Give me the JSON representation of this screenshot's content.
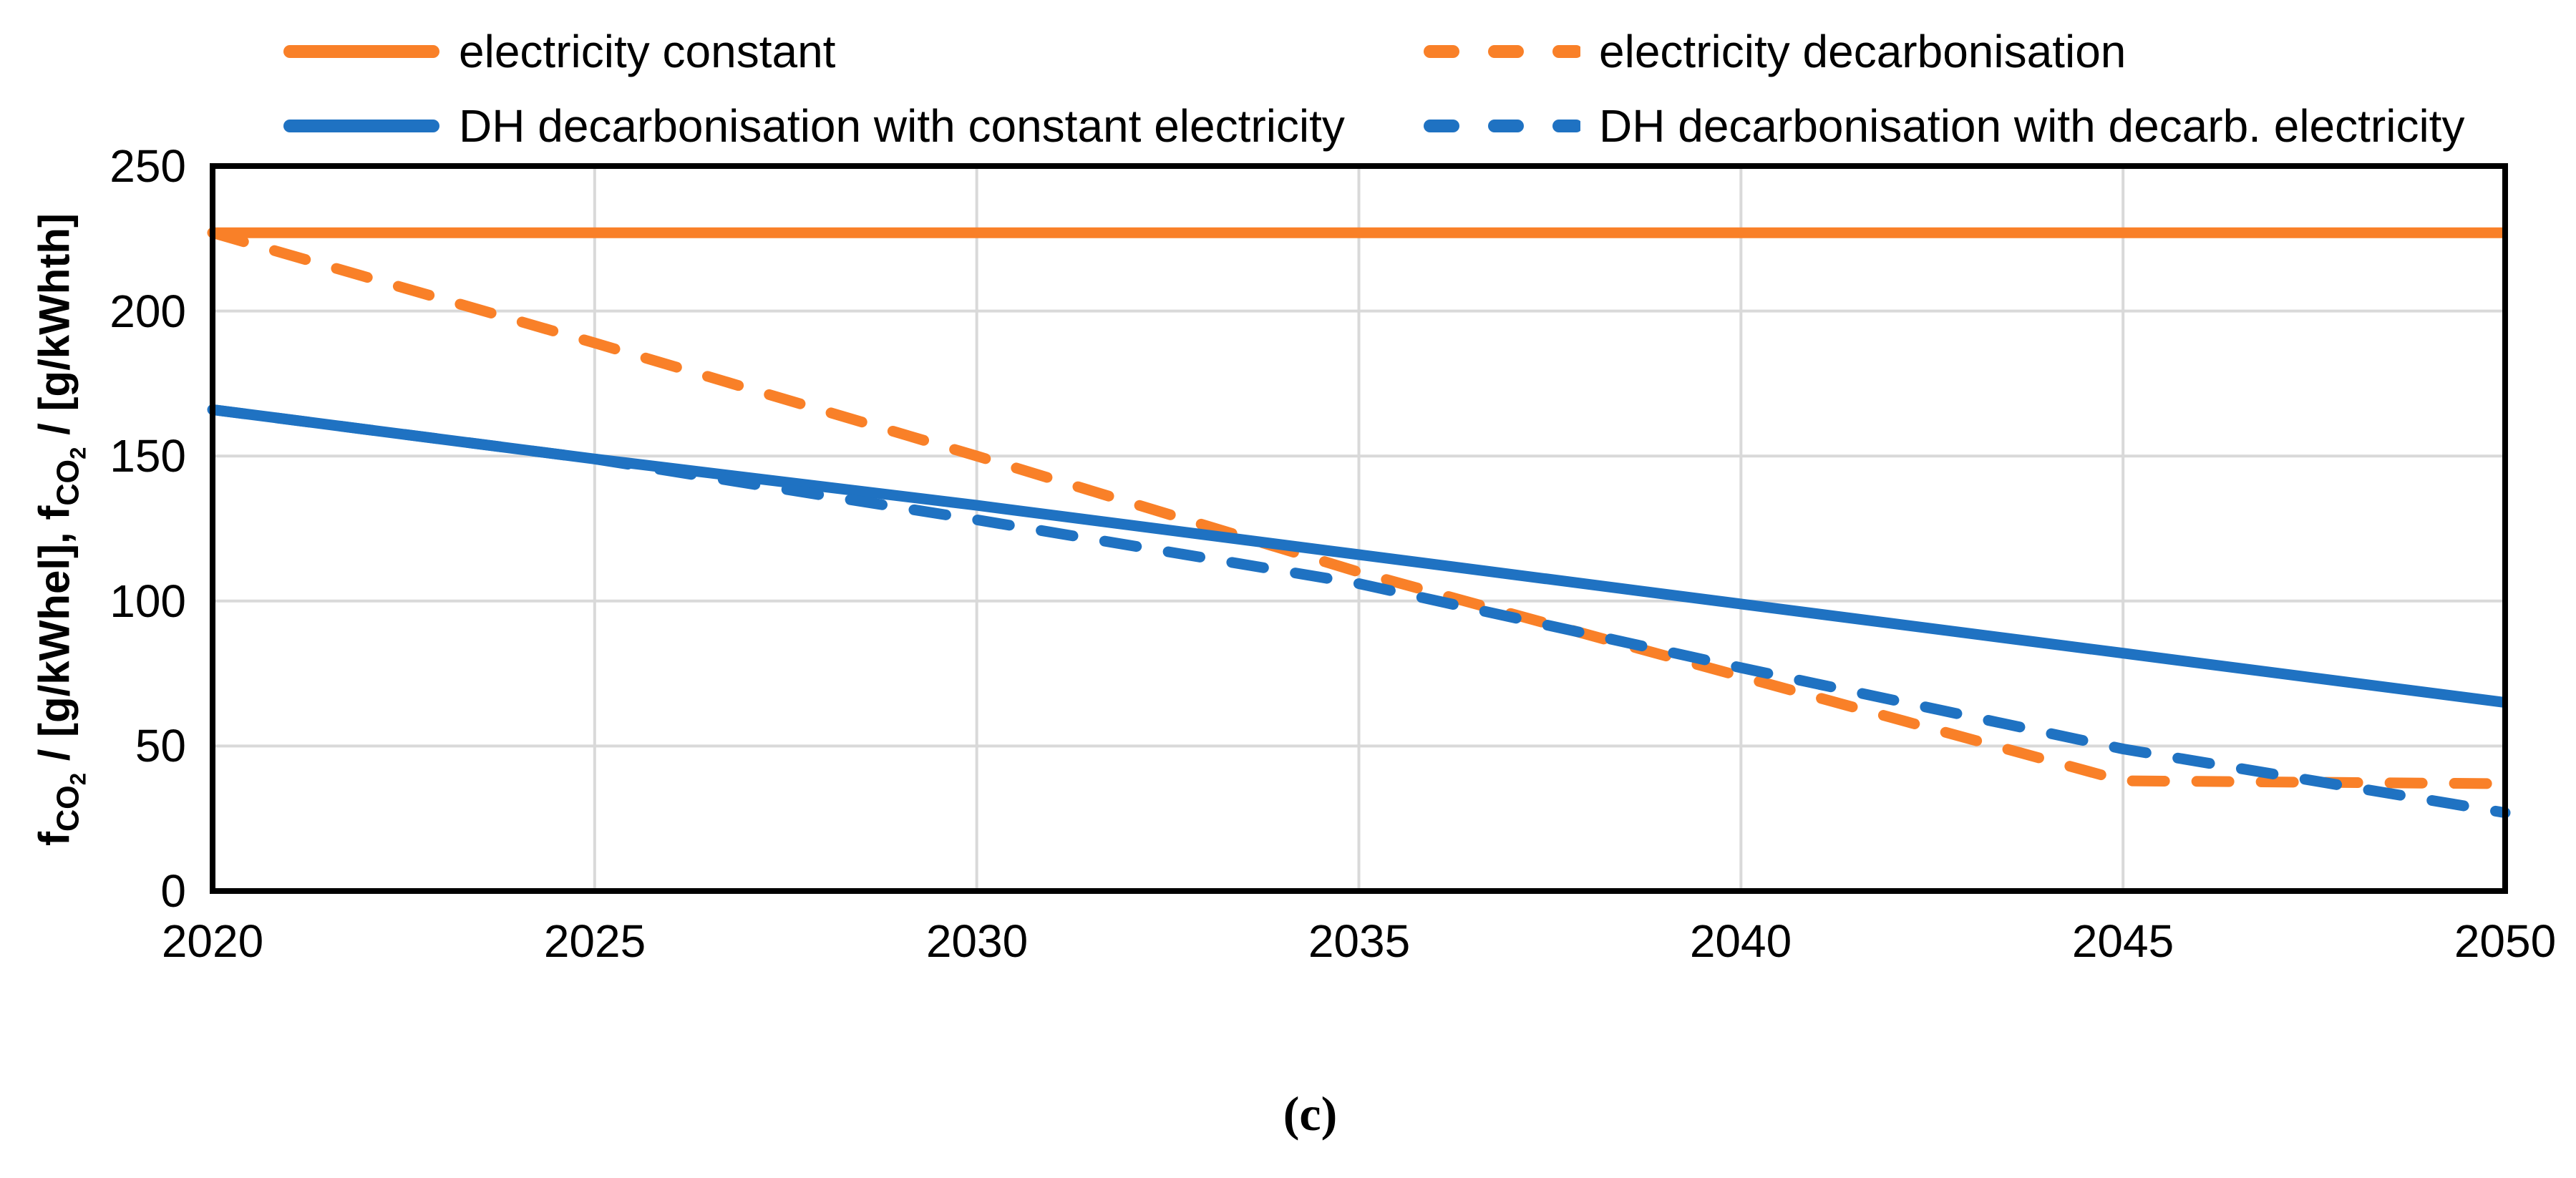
{
  "figure": {
    "caption": "(c)"
  },
  "colors": {
    "orange": "#F98028",
    "blue": "#1F72C2",
    "gridline": "#D9D9D9",
    "axis": "#000000"
  },
  "y_axis": {
    "tick_labels": [
      "250",
      "200",
      "150",
      "100",
      "50",
      "0"
    ],
    "title": {
      "f1": "f",
      "sub1": "CO",
      "sub1b": "2",
      "mid": " / [g/kWhel], ",
      "f2": "f",
      "sub2": "CO",
      "sub2b": "2",
      "end": " / [g/kWhth]"
    }
  },
  "x_axis": {
    "tick_labels": [
      "2020",
      "2025",
      "2030",
      "2035",
      "2040",
      "2045",
      "2050"
    ]
  },
  "chart_data": {
    "type": "line",
    "title": "",
    "xlabel": "",
    "ylabel": "fCO2 / [g/kWhel], fCO2 / [g/kWhth]",
    "x": [
      2020,
      2025,
      2030,
      2035,
      2040,
      2045,
      2050
    ],
    "xlim": [
      2020,
      2050
    ],
    "ylim": [
      0,
      250
    ],
    "x_ticks": [
      2020,
      2025,
      2030,
      2035,
      2040,
      2045,
      2050
    ],
    "y_ticks": [
      0,
      50,
      100,
      150,
      200,
      250
    ],
    "grid": true,
    "legend_position": "top",
    "series": [
      {
        "name": "electricity constant",
        "color": "#F98028",
        "style": "solid",
        "values": [
          227,
          227,
          227,
          227,
          227,
          227,
          227
        ]
      },
      {
        "name": "electricity decarbonisation",
        "color": "#F98028",
        "style": "dashed",
        "values": [
          227,
          189,
          150,
          110,
          74,
          38,
          37
        ]
      },
      {
        "name": "DH decarbonisation with constant electricity",
        "color": "#1F72C2",
        "style": "solid",
        "values": [
          166,
          149,
          133,
          116,
          99,
          82,
          65
        ]
      },
      {
        "name": "DH decarbonisation with decarb. electricity",
        "color": "#1F72C2",
        "style": "dashed",
        "values": [
          166,
          149,
          128,
          106,
          77,
          49,
          27
        ]
      }
    ]
  }
}
